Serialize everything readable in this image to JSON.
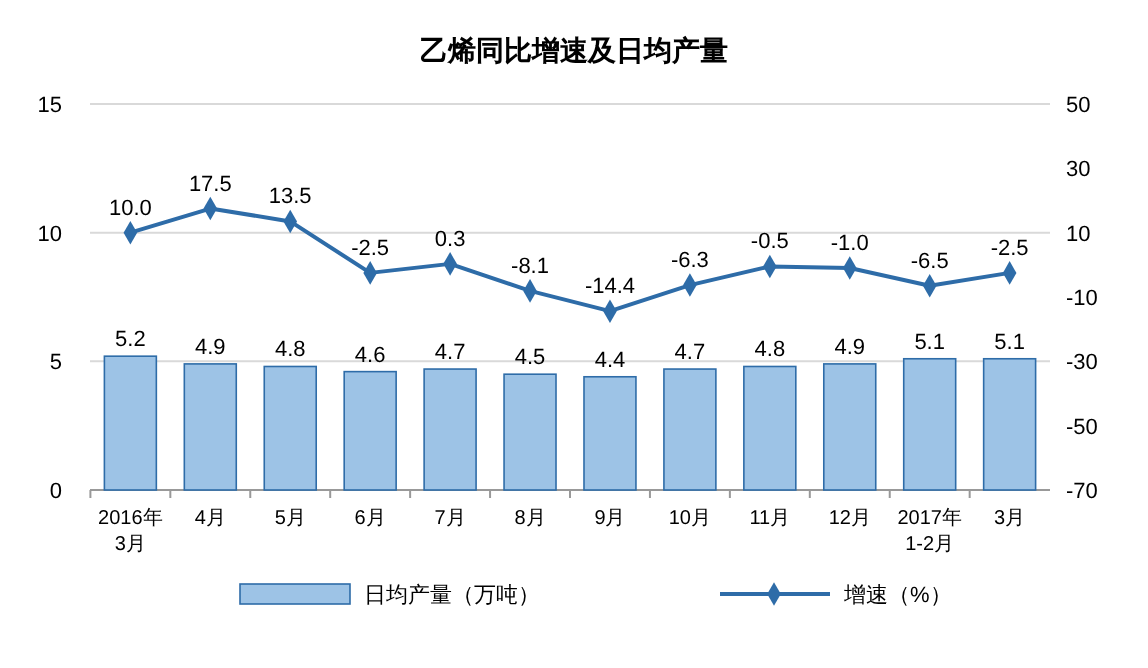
{
  "chart_data": {
    "type": "bar",
    "title": "乙烯同比增速及日均产量",
    "categories": [
      "2016年\n3月",
      "4月",
      "5月",
      "6月",
      "7月",
      "8月",
      "9月",
      "10月",
      "11月",
      "12月",
      "2017年\n1-2月",
      "3月"
    ],
    "series": [
      {
        "name": "日均产量（万吨）",
        "color": "#9dc3e6",
        "values": [
          5.2,
          4.9,
          4.8,
          4.6,
          4.7,
          4.5,
          4.4,
          4.7,
          4.8,
          4.9,
          5.1,
          5.1
        ],
        "value_labels": [
          "5.2",
          "4.9",
          "4.8",
          "4.6",
          "4.7",
          "4.5",
          "4.4",
          "4.7",
          "4.8",
          "4.9",
          "5.1",
          "5.1"
        ]
      },
      {
        "name": "增速（%）",
        "type": "line",
        "axis": "y2",
        "color": "#2e6ca8",
        "marker": "diamond",
        "values": [
          10.0,
          17.5,
          13.5,
          -2.5,
          0.3,
          -8.1,
          -14.4,
          -6.3,
          -0.5,
          -1.0,
          -6.5,
          -2.5
        ],
        "value_labels": [
          "10.0",
          "17.5",
          "13.5",
          "-2.5",
          "0.3",
          "-8.1",
          "-14.4",
          "-6.3",
          "-0.5",
          "-1.0",
          "-6.5",
          "-2.5"
        ]
      }
    ],
    "ylim": [
      0,
      15
    ],
    "yticks": [
      0,
      5,
      10,
      15
    ],
    "y2lim": [
      -70,
      50
    ],
    "y2ticks": [
      -70,
      -50,
      -30,
      -10,
      10,
      30,
      50
    ],
    "grid": "y",
    "legend": "bottom"
  }
}
